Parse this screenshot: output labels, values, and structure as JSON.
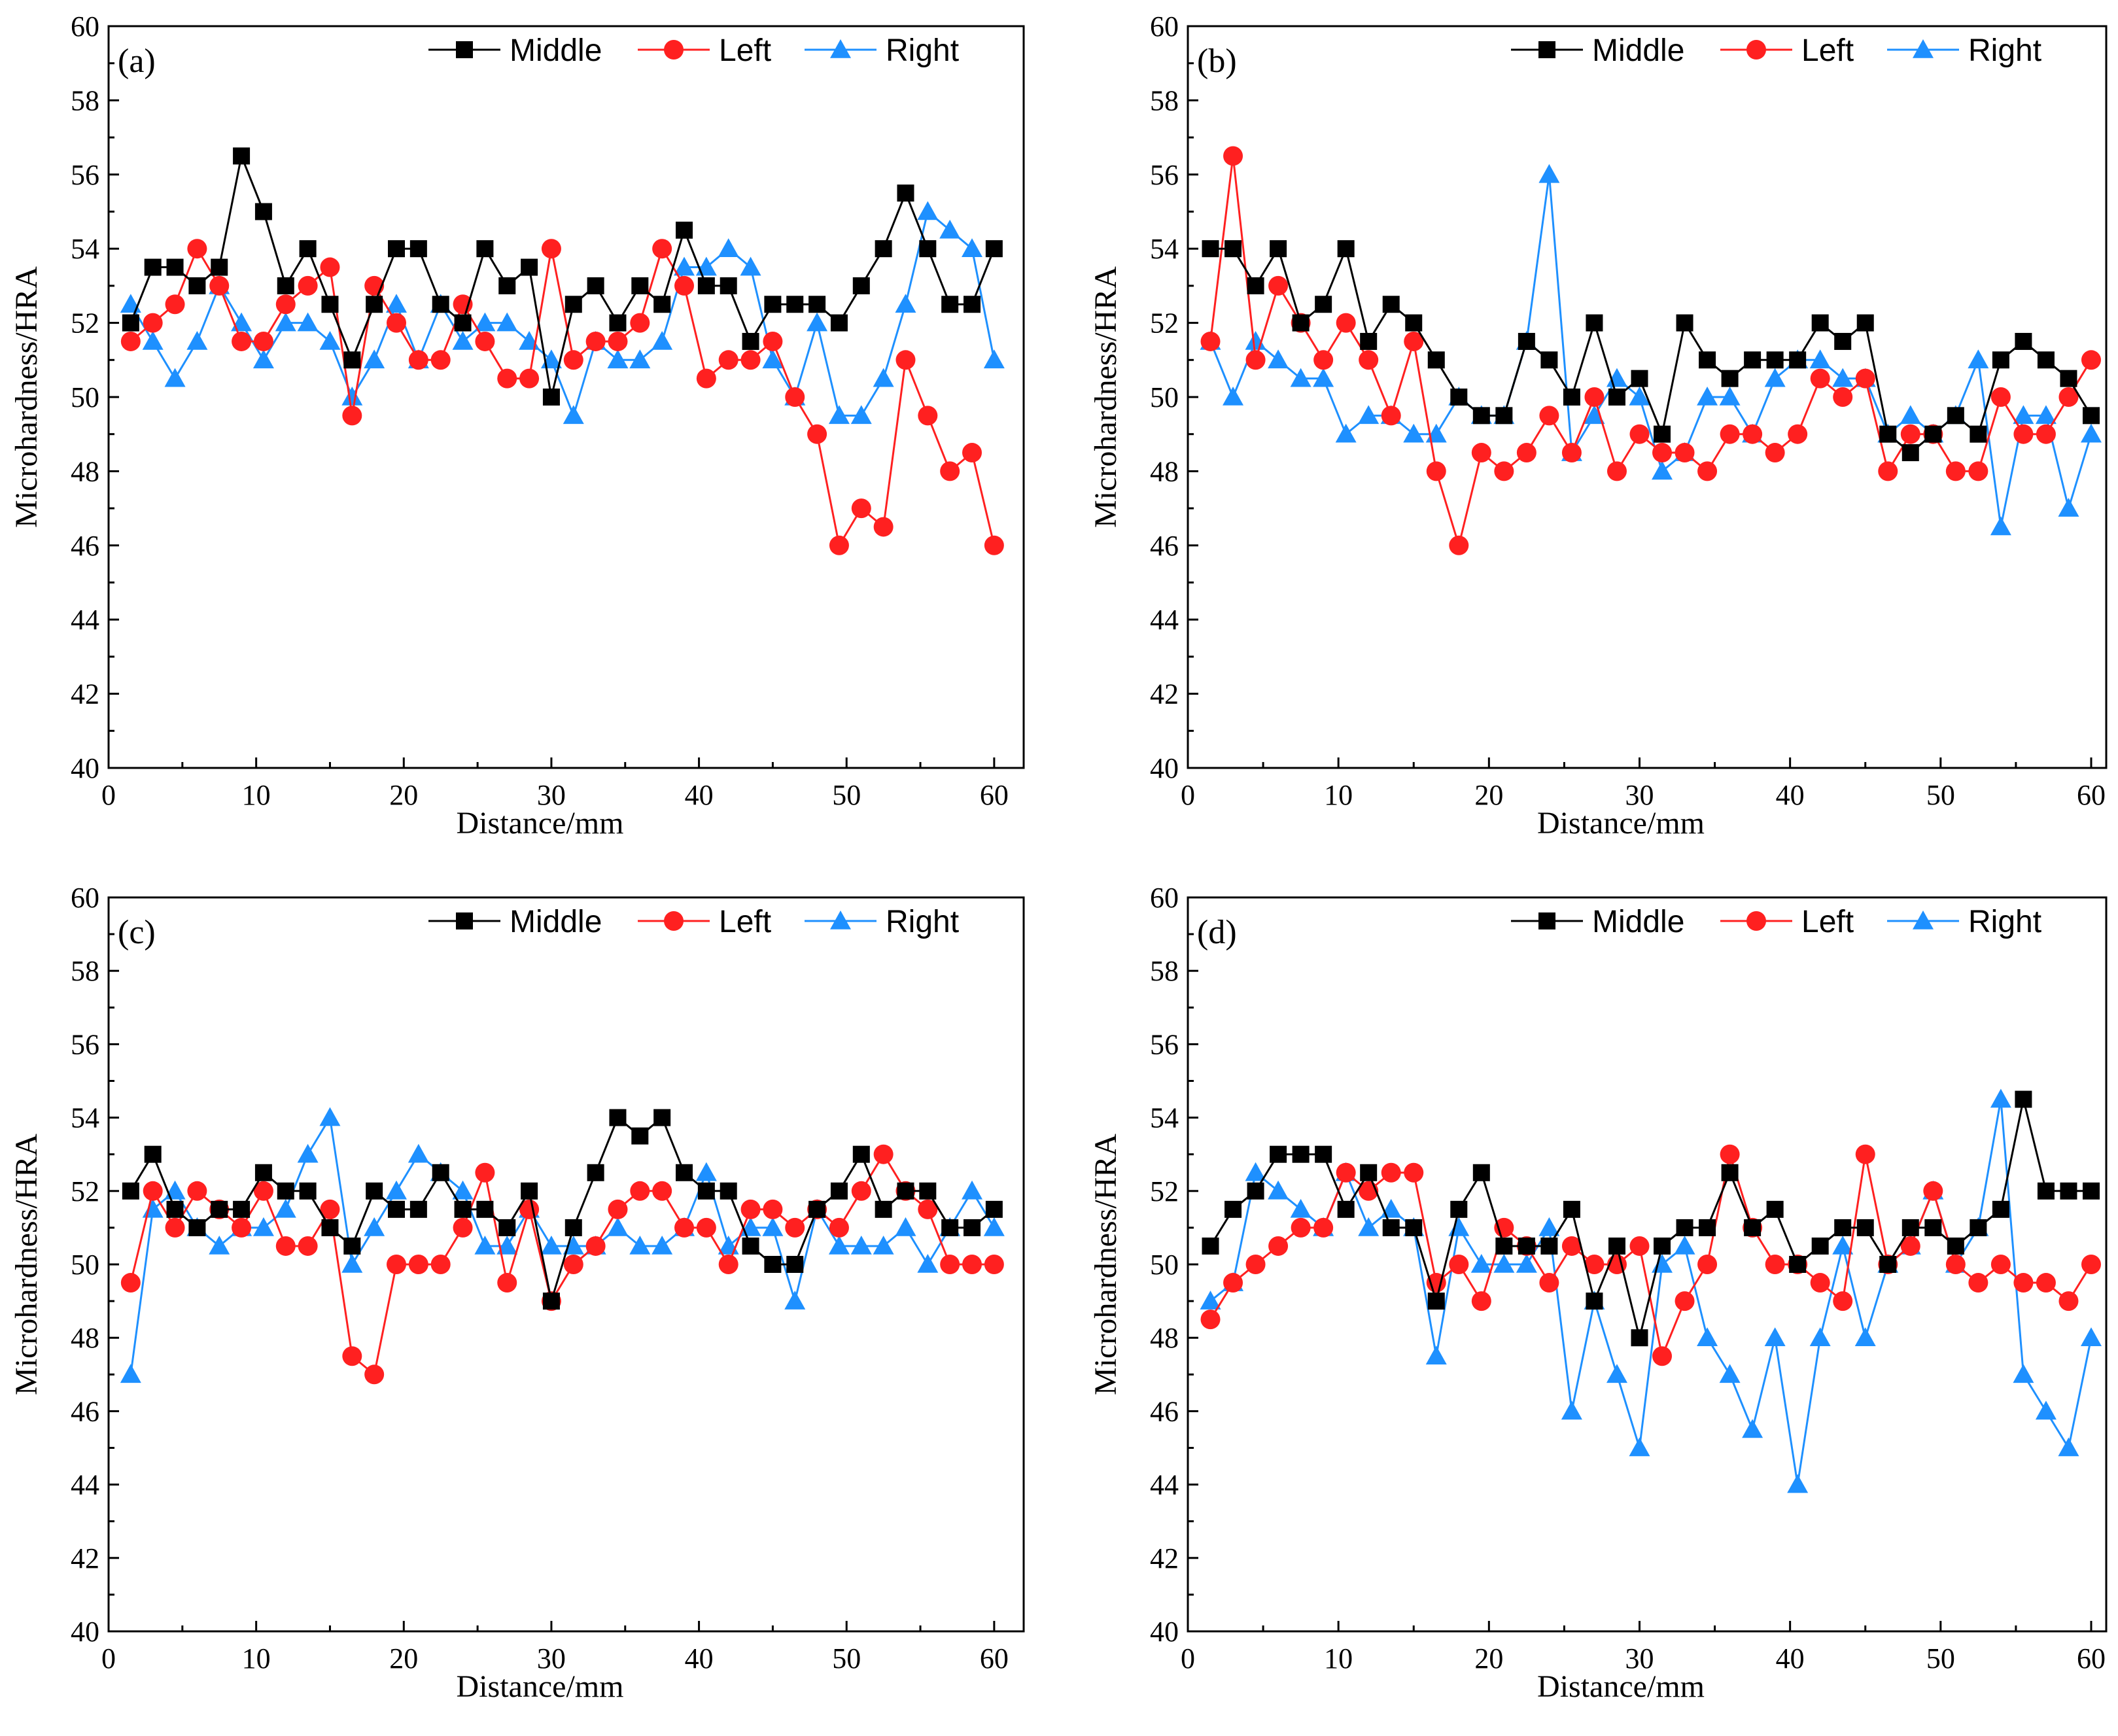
{
  "colors": {
    "Middle": "#000000",
    "Left": "#ff2020",
    "Right": "#1e90ff"
  },
  "chart_data": [
    {
      "type": "line",
      "title": "(a)",
      "xlabel": "Distance/mm",
      "ylabel": "Microhardness/HRA",
      "xlim": [
        0,
        62
      ],
      "ylim": [
        40,
        60
      ],
      "xticks": [
        0,
        10,
        20,
        30,
        40,
        50,
        60
      ],
      "yticks": [
        40,
        42,
        44,
        46,
        48,
        50,
        52,
        54,
        56,
        58,
        60
      ],
      "legend": "top-right",
      "x": [
        1.5,
        3,
        4.5,
        6,
        7.5,
        9,
        10.5,
        12,
        13.5,
        15,
        16.5,
        18,
        19.5,
        21,
        22.5,
        24,
        25.5,
        27,
        28.5,
        30,
        31.5,
        33,
        34.5,
        36,
        37.5,
        39,
        40.5,
        42,
        43.5,
        45,
        46.5,
        48,
        49.5,
        51,
        52.5,
        54,
        55.5,
        57,
        58.5,
        60
      ],
      "series": [
        {
          "name": "Middle",
          "marker": "square",
          "values": [
            52,
            53.5,
            53.5,
            53,
            53.5,
            56.5,
            55,
            53,
            54,
            52.5,
            51,
            52.5,
            54,
            54,
            52.5,
            52,
            54,
            53,
            53.5,
            50,
            52.5,
            53,
            52,
            53,
            52.5,
            54.5,
            53,
            53,
            51.5,
            52.5,
            52.5,
            52.5,
            52,
            53,
            54,
            55.5,
            54,
            52.5,
            52.5,
            54
          ]
        },
        {
          "name": "Left",
          "marker": "circle",
          "values": [
            51.5,
            52,
            52.5,
            54,
            53,
            51.5,
            51.5,
            52.5,
            53,
            53.5,
            49.5,
            53,
            52,
            51,
            51,
            52.5,
            51.5,
            50.5,
            50.5,
            54,
            51,
            51.5,
            51.5,
            52,
            54,
            53,
            50.5,
            51,
            51,
            51.5,
            50,
            49,
            46,
            47,
            46.5,
            51,
            49.5,
            48,
            48.5,
            46
          ]
        },
        {
          "name": "Right",
          "marker": "triangle",
          "values": [
            52.5,
            51.5,
            50.5,
            51.5,
            53,
            52,
            51,
            52,
            52,
            51.5,
            50,
            51,
            52.5,
            51,
            52.5,
            51.5,
            52,
            52,
            51.5,
            51,
            49.5,
            51.5,
            51,
            51,
            51.5,
            53.5,
            53.5,
            54,
            53.5,
            51,
            50,
            52,
            49.5,
            49.5,
            50.5,
            52.5,
            55,
            54.5,
            54,
            51
          ]
        }
      ]
    },
    {
      "type": "line",
      "title": "(b)",
      "xlabel": "Distance/mm",
      "ylabel": "Microhardness/HRA",
      "xlim": [
        0,
        61
      ],
      "ylim": [
        40,
        60
      ],
      "xticks": [
        0,
        10,
        20,
        30,
        40,
        50,
        60
      ],
      "yticks": [
        40,
        42,
        44,
        46,
        48,
        50,
        52,
        54,
        56,
        58,
        60
      ],
      "legend": "top-right",
      "x": [
        1.5,
        3,
        4.5,
        6,
        7.5,
        9,
        10.5,
        12,
        13.5,
        15,
        16.5,
        18,
        19.5,
        21,
        22.5,
        24,
        25.5,
        27,
        28.5,
        30,
        31.5,
        33,
        34.5,
        36,
        37.5,
        39,
        40.5,
        42,
        43.5,
        45,
        46.5,
        48,
        49.5,
        51,
        52.5,
        54,
        55.5,
        57,
        58.5,
        60
      ],
      "series": [
        {
          "name": "Middle",
          "marker": "square",
          "values": [
            54,
            54,
            53,
            54,
            52,
            52.5,
            54,
            51.5,
            52.5,
            52,
            51,
            50,
            49.5,
            49.5,
            51.5,
            51,
            50,
            52,
            50,
            50.5,
            49,
            52,
            51,
            50.5,
            51,
            51,
            51,
            52,
            51.5,
            52,
            49,
            48.5,
            49,
            49.5,
            49,
            51,
            51.5,
            51,
            50.5,
            49.5
          ]
        },
        {
          "name": "Left",
          "marker": "circle",
          "values": [
            51.5,
            56.5,
            51,
            53,
            52,
            51,
            52,
            51,
            49.5,
            51.5,
            48,
            46,
            48.5,
            48,
            48.5,
            49.5,
            48.5,
            50,
            48,
            49,
            48.5,
            48.5,
            48,
            49,
            49,
            48.5,
            49,
            50.5,
            50,
            50.5,
            48,
            49,
            49,
            48,
            48,
            50,
            49,
            49,
            50,
            51
          ]
        },
        {
          "name": "Right",
          "marker": "triangle",
          "values": [
            51.5,
            50,
            51.5,
            51,
            50.5,
            50.5,
            49,
            49.5,
            49.5,
            49,
            49,
            50,
            49.5,
            49.5,
            51.5,
            56,
            48.5,
            49.5,
            50.5,
            50,
            48,
            48.5,
            50,
            50,
            49,
            50.5,
            51,
            51,
            50.5,
            50.5,
            49,
            49.5,
            49,
            49.5,
            51,
            46.5,
            49.5,
            49.5,
            47,
            49
          ]
        }
      ]
    },
    {
      "type": "line",
      "title": "(c)",
      "xlabel": "Distance/mm",
      "ylabel": "Microhardness/HRA",
      "xlim": [
        0,
        62
      ],
      "ylim": [
        40,
        60
      ],
      "xticks": [
        0,
        10,
        20,
        30,
        40,
        50,
        60
      ],
      "yticks": [
        40,
        42,
        44,
        46,
        48,
        50,
        52,
        54,
        56,
        58,
        60
      ],
      "legend": "top-right",
      "x": [
        1.5,
        3,
        4.5,
        6,
        7.5,
        9,
        10.5,
        12,
        13.5,
        15,
        16.5,
        18,
        19.5,
        21,
        22.5,
        24,
        25.5,
        27,
        28.5,
        30,
        31.5,
        33,
        34.5,
        36,
        37.5,
        39,
        40.5,
        42,
        43.5,
        45,
        46.5,
        48,
        49.5,
        51,
        52.5,
        54,
        55.5,
        57,
        58.5,
        60
      ],
      "series": [
        {
          "name": "Middle",
          "marker": "square",
          "values": [
            52,
            53,
            51.5,
            51,
            51.5,
            51.5,
            52.5,
            52,
            52,
            51,
            50.5,
            52,
            51.5,
            51.5,
            52.5,
            51.5,
            51.5,
            51,
            52,
            49,
            51,
            52.5,
            54,
            53.5,
            54,
            52.5,
            52,
            52,
            50.5,
            50,
            50,
            51.5,
            52,
            53,
            51.5,
            52,
            52,
            51,
            51,
            51.5
          ]
        },
        {
          "name": "Left",
          "marker": "circle",
          "values": [
            49.5,
            52,
            51,
            52,
            51.5,
            51,
            52,
            50.5,
            50.5,
            51.5,
            47.5,
            47,
            50,
            50,
            50,
            51,
            52.5,
            49.5,
            51.5,
            49,
            50,
            50.5,
            51.5,
            52,
            52,
            51,
            51,
            50,
            51.5,
            51.5,
            51,
            51.5,
            51,
            52,
            53,
            52,
            51.5,
            50,
            50,
            50
          ]
        },
        {
          "name": "Right",
          "marker": "triangle",
          "values": [
            47,
            51.5,
            52,
            51,
            50.5,
            51,
            51,
            51.5,
            53,
            54,
            50,
            51,
            52,
            53,
            52.5,
            52,
            50.5,
            50.5,
            51.5,
            50.5,
            50.5,
            50.5,
            51,
            50.5,
            50.5,
            51,
            52.5,
            50.5,
            51,
            51,
            49,
            51.5,
            50.5,
            50.5,
            50.5,
            51,
            50,
            51,
            52,
            51
          ]
        }
      ]
    },
    {
      "type": "line",
      "title": "(d)",
      "xlabel": "Distance/mm",
      "ylabel": "Microhardness/HRA",
      "xlim": [
        0,
        61
      ],
      "ylim": [
        40,
        60
      ],
      "xticks": [
        0,
        10,
        20,
        30,
        40,
        50,
        60
      ],
      "yticks": [
        40,
        42,
        44,
        46,
        48,
        50,
        52,
        54,
        56,
        58,
        60
      ],
      "legend": "top-right",
      "x": [
        1.5,
        3,
        4.5,
        6,
        7.5,
        9,
        10.5,
        12,
        13.5,
        15,
        16.5,
        18,
        19.5,
        21,
        22.5,
        24,
        25.5,
        27,
        28.5,
        30,
        31.5,
        33,
        34.5,
        36,
        37.5,
        39,
        40.5,
        42,
        43.5,
        45,
        46.5,
        48,
        49.5,
        51,
        52.5,
        54,
        55.5,
        57,
        58.5,
        60
      ],
      "series": [
        {
          "name": "Middle",
          "marker": "square",
          "values": [
            50.5,
            51.5,
            52,
            53,
            53,
            53,
            51.5,
            52.5,
            51,
            51,
            49,
            51.5,
            52.5,
            50.5,
            50.5,
            50.5,
            51.5,
            49,
            50.5,
            48,
            50.5,
            51,
            51,
            52.5,
            51,
            51.5,
            50,
            50.5,
            51,
            51,
            50,
            51,
            51,
            50.5,
            51,
            51.5,
            54.5,
            52,
            52,
            52
          ]
        },
        {
          "name": "Left",
          "marker": "circle",
          "values": [
            48.5,
            49.5,
            50,
            50.5,
            51,
            51,
            52.5,
            52,
            52.5,
            52.5,
            49.5,
            50,
            49,
            51,
            50.5,
            49.5,
            50.5,
            50,
            50,
            50.5,
            47.5,
            49,
            50,
            53,
            51,
            50,
            50,
            49.5,
            49,
            53,
            50,
            50.5,
            52,
            50,
            49.5,
            50,
            49.5,
            49.5,
            49,
            50
          ]
        },
        {
          "name": "Right",
          "marker": "triangle",
          "values": [
            49,
            49.5,
            52.5,
            52,
            51.5,
            51,
            52.5,
            51,
            51.5,
            51,
            47.5,
            51,
            50,
            50,
            50,
            51,
            46,
            49,
            47,
            45,
            50,
            50.5,
            48,
            47,
            45.5,
            48,
            44,
            48,
            50.5,
            48,
            50,
            50.5,
            52,
            50,
            51,
            54.5,
            47,
            46,
            45,
            48
          ]
        }
      ]
    }
  ]
}
